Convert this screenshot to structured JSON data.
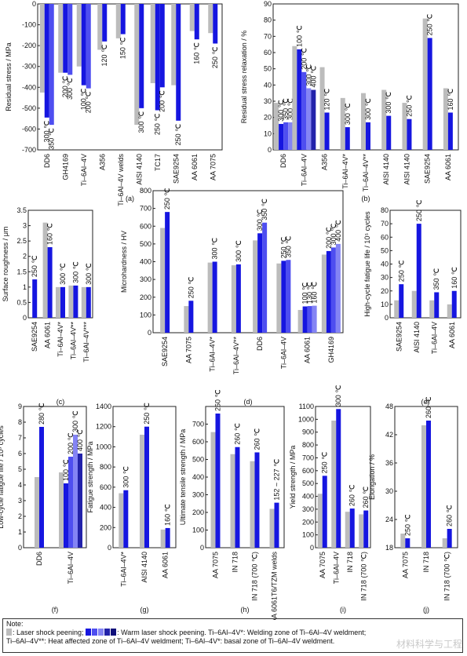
{
  "colors": {
    "lsp": "#bcbcbc",
    "warm": [
      "#1616e0",
      "#4e4ef0",
      "#8484f4",
      "#2222aa",
      "#10107a"
    ],
    "axis": "#222222"
  },
  "chart_data": [
    {
      "id": "a",
      "type": "bar",
      "panel_label": "(a)",
      "ylabel": "Residual stress / MPa",
      "ylim": [
        -700,
        0
      ],
      "yticks": [
        0,
        -100,
        -200,
        -300,
        -400,
        -500,
        -600,
        -700
      ],
      "categories": [
        "DD6",
        "GH4169",
        "Ti–6Al–4V",
        "A356",
        "Ti–6Al–4V welds",
        "AISI 4140",
        "TC17",
        "SAE9254",
        "AA 6061",
        "AA 7075"
      ],
      "groups": [
        {
          "cat": 0,
          "lsp": -425,
          "warm": [
            {
              "v": -545,
              "t": "300 ℃"
            },
            {
              "v": -580,
              "t": "350 ℃"
            }
          ]
        },
        {
          "cat": 1,
          "lsp": -330,
          "warm": [
            {
              "v": -330,
              "t": "200 ℃"
            },
            {
              "v": -340,
              "t": "300 ℃"
            }
          ]
        },
        {
          "cat": 2,
          "lsp": -300,
          "warm": [
            {
              "v": -390,
              "t": "100 ℃"
            },
            {
              "v": -405,
              "t": "200 ℃"
            }
          ]
        },
        {
          "cat": 3,
          "lsp": -220,
          "warm": [
            {
              "v": -180,
              "t": "120 ℃"
            }
          ]
        },
        {
          "cat": 4,
          "lsp": -165,
          "warm": [
            {
              "v": -145,
              "t": "150 ℃"
            }
          ]
        },
        {
          "cat": 5,
          "lsp": -580,
          "warm": [
            {
              "v": -500,
              "t": "300 ℃"
            }
          ]
        },
        {
          "cat": 6,
          "lsp": -380,
          "warm": [
            {
              "v": -510,
              "t": "250 ℃"
            }
          ]
        },
        {
          "cat": 6,
          "lsp": null,
          "warm": [
            {
              "v": -400,
              "t": "200 ℃"
            }
          ]
        },
        {
          "cat": 7,
          "lsp": -390,
          "warm": [
            {
              "v": -560,
              "t": "250 ℃"
            }
          ]
        },
        {
          "cat": 8,
          "lsp": -130,
          "warm": [
            {
              "v": -170,
              "t": "160 ℃"
            }
          ]
        },
        {
          "cat": 9,
          "lsp": -140,
          "warm": [
            {
              "v": -190,
              "t": "250 ℃"
            }
          ]
        }
      ]
    },
    {
      "id": "b",
      "type": "bar",
      "panel_label": "(b)",
      "ylabel": "Residual stress relaxation / %",
      "ylim": [
        0,
        90
      ],
      "yticks": [
        0,
        10,
        20,
        30,
        40,
        50,
        60,
        70,
        80,
        90
      ],
      "categories": [
        "DD6",
        "Ti–6Al–4V",
        "A356",
        "Ti–6Al–4V*",
        "Ti–6Al–4V**",
        "AISI 4140",
        "AISI 4140",
        "SAE9254",
        "AA 6061"
      ],
      "groups": [
        {
          "cat": 0,
          "lsp": 29,
          "warm": [
            {
              "v": 16,
              "t": "300 ℃"
            },
            {
              "v": 17,
              "t": "350 ℃"
            },
            {
              "v": 17,
              "t": "300 ℃"
            }
          ]
        },
        {
          "cat": 1,
          "lsp": 64,
          "warm": [
            {
              "v": 62,
              "t": "100 ℃"
            },
            {
              "v": 48,
              "t": "200 ℃"
            },
            {
              "v": 38,
              "t": "300 ℃"
            },
            {
              "v": 37,
              "t": "400 ℃"
            }
          ]
        },
        {
          "cat": 2,
          "lsp": 51,
          "warm": [
            {
              "v": 23,
              "t": "120 ℃"
            }
          ]
        },
        {
          "cat": 3,
          "lsp": 32,
          "warm": [
            {
              "v": 14,
              "t": "300 ℃"
            }
          ]
        },
        {
          "cat": 4,
          "lsp": 35,
          "warm": [
            {
              "v": 17,
              "t": "300 ℃"
            }
          ]
        },
        {
          "cat": 5,
          "lsp": 37,
          "warm": [
            {
              "v": 21,
              "t": "300 ℃"
            }
          ]
        },
        {
          "cat": 6,
          "lsp": 29,
          "warm": [
            {
              "v": 19,
              "t": "250 ℃"
            }
          ]
        },
        {
          "cat": 7,
          "lsp": 81,
          "warm": [
            {
              "v": 69,
              "t": "250 ℃"
            }
          ]
        },
        {
          "cat": 8,
          "lsp": 38,
          "warm": [
            {
              "v": 23,
              "t": "160 ℃"
            }
          ]
        }
      ]
    },
    {
      "id": "c",
      "type": "bar",
      "panel_label": "(c)",
      "ylabel": "Surface roughness / μm",
      "ylim": [
        0,
        3.5
      ],
      "yticks": [
        0,
        0.5,
        1.0,
        1.5,
        2.0,
        2.5,
        3.0,
        3.5
      ],
      "categories": [
        "SAE9254",
        "AA 6061",
        "Ti–6Al–4V*",
        "Ti–6Al–4V**",
        "Ti–6Al–4V***"
      ],
      "groups": [
        {
          "cat": 0,
          "lsp": null,
          "warm": [
            {
              "v": 1.25,
              "t": "250 ℃"
            }
          ]
        },
        {
          "cat": 1,
          "lsp": 3.1,
          "warm": [
            {
              "v": 2.3,
              "t": "160 ℃"
            }
          ]
        },
        {
          "cat": 2,
          "lsp": 1.0,
          "warm": [
            {
              "v": 1.0,
              "t": "300 ℃"
            }
          ]
        },
        {
          "cat": 3,
          "lsp": 1.05,
          "warm": [
            {
              "v": 1.05,
              "t": "300 ℃"
            }
          ]
        },
        {
          "cat": 4,
          "lsp": 1.0,
          "warm": [
            {
              "v": 1.0,
              "t": "300 ℃"
            }
          ]
        }
      ]
    },
    {
      "id": "d",
      "type": "bar",
      "panel_label": "(d)",
      "ylabel": "Microhardness / HV",
      "ylim": [
        0,
        800
      ],
      "yticks": [
        0,
        100,
        200,
        300,
        400,
        500,
        600,
        700,
        800
      ],
      "categories": [
        "SAE9254",
        "AA 7075",
        "Ti–6Al–4V*",
        "Ti–6Al–4V**",
        "DD6",
        "Ti–6Al–4V",
        "AA 6061",
        "GH4169"
      ],
      "groups": [
        {
          "cat": 0,
          "lsp": 590,
          "warm": [
            {
              "v": 680,
              "t": "250 ℃"
            }
          ]
        },
        {
          "cat": 1,
          "lsp": 150,
          "warm": [
            {
              "v": 180,
              "t": "250 ℃"
            }
          ]
        },
        {
          "cat": 2,
          "lsp": 395,
          "warm": [
            {
              "v": 400,
              "t": "300 ℃"
            }
          ]
        },
        {
          "cat": 3,
          "lsp": 380,
          "warm": [
            {
              "v": 385,
              "t": "300 ℃"
            }
          ]
        },
        {
          "cat": 4,
          "lsp": 520,
          "warm": [
            {
              "v": 560,
              "t": "300 ℃"
            },
            {
              "v": 620,
              "t": "350 ℃"
            }
          ]
        },
        {
          "cat": 5,
          "lsp": 390,
          "warm": [
            {
              "v": 405,
              "t": "250 ℃"
            },
            {
              "v": 410,
              "t": "350 ℃"
            }
          ]
        },
        {
          "cat": 6,
          "lsp": 128,
          "warm": [
            {
              "v": 148,
              "t": "100 ℃"
            },
            {
              "v": 150,
              "t": "130 ℃"
            },
            {
              "v": 152,
              "t": "160 ℃"
            }
          ]
        },
        {
          "cat": 7,
          "lsp": 440,
          "warm": [
            {
              "v": 460,
              "t": "200 ℃"
            },
            {
              "v": 480,
              "t": "300 ℃"
            },
            {
              "v": 500,
              "t": "400 ℃"
            }
          ]
        }
      ]
    },
    {
      "id": "e",
      "type": "bar",
      "panel_label": "(e)",
      "ylabel": "High-cycle fatigue life / 10⁵ cycles",
      "ylim": [
        0,
        80
      ],
      "yticks": [
        0,
        10,
        20,
        30,
        40,
        50,
        60,
        70,
        80
      ],
      "categories": [
        "SAE9254",
        "AISI 4140",
        "Ti–6Al–4V",
        "AA 6061"
      ],
      "groups": [
        {
          "cat": 0,
          "lsp": 13,
          "warm": [
            {
              "v": 25,
              "t": "250 ℃"
            }
          ]
        },
        {
          "cat": 1,
          "lsp": 20,
          "warm": [
            {
              "v": 70,
              "t": "250 ℃"
            }
          ]
        },
        {
          "cat": 2,
          "lsp": 13,
          "warm": [
            {
              "v": 19,
              "t": "350 ℃"
            }
          ]
        },
        {
          "cat": 3,
          "lsp": 10,
          "warm": [
            {
              "v": 20,
              "t": "160 ℃"
            }
          ]
        }
      ]
    },
    {
      "id": "f",
      "type": "bar",
      "panel_label": "(f)",
      "ylabel": "Low-cycle fatigue life / 10³ cycles",
      "ylim": [
        0,
        9
      ],
      "yticks": [
        0,
        1,
        2,
        3,
        4,
        5,
        6,
        7,
        8,
        9
      ],
      "categories": [
        "DD6",
        "Ti–6Al–4V"
      ],
      "groups": [
        {
          "cat": 0,
          "lsp": 4.5,
          "warm": [
            {
              "v": 7.7,
              "t": "280 ℃"
            }
          ]
        },
        {
          "cat": 1,
          "lsp": 4.8,
          "warm": [
            {
              "v": 4.1,
              "t": "100 ℃"
            },
            {
              "v": 5.8,
              "t": "200 ℃"
            },
            {
              "v": 7.2,
              "t": "300 ℃"
            },
            {
              "v": 6.0,
              "t": "400 ℃"
            }
          ]
        }
      ]
    },
    {
      "id": "g",
      "type": "bar",
      "panel_label": "(g)",
      "ylabel": "Fatigue strength / MPa",
      "ylim": [
        0,
        1400
      ],
      "yticks": [
        0,
        200,
        400,
        600,
        800,
        1000,
        1200,
        1400
      ],
      "categories": [
        "Ti–6Al–4V*",
        "AISI 4140",
        "AA 6061"
      ],
      "groups": [
        {
          "cat": 0,
          "lsp": 540,
          "warm": [
            {
              "v": 570,
              "t": "300 ℃"
            }
          ]
        },
        {
          "cat": 1,
          "lsp": 1120,
          "warm": [
            {
              "v": 1200,
              "t": "250 ℃"
            }
          ]
        },
        {
          "cat": 2,
          "lsp": 180,
          "warm": [
            {
              "v": 195,
              "t": "160 ℃"
            }
          ]
        }
      ]
    },
    {
      "id": "h",
      "type": "bar",
      "panel_label": "(h)",
      "ylabel": "Ultimate tensile strength / MPa",
      "ylim": [
        0,
        800
      ],
      "yticks": [
        0,
        100,
        200,
        300,
        400,
        500,
        600,
        700
      ],
      "categories": [
        "AA 7075",
        "IN 718",
        "IN 718 (700 ℃)",
        "AA 6061T6/TZM welds"
      ],
      "groups": [
        {
          "cat": 0,
          "lsp": 655,
          "warm": [
            {
              "v": 760,
              "t": "250 ℃"
            }
          ]
        },
        {
          "cat": 1,
          "lsp": 530,
          "warm": [
            {
              "v": 570,
              "t": "260 ℃"
            }
          ]
        },
        {
          "cat": 2,
          "lsp": 490,
          "warm": [
            {
              "v": 540,
              "t": "260 ℃"
            }
          ]
        },
        {
          "cat": 3,
          "lsp": 220,
          "warm": [
            {
              "v": 255,
              "t": "152 ~ 227 ℃"
            }
          ]
        }
      ]
    },
    {
      "id": "i",
      "type": "bar",
      "panel_label": "(i)",
      "ylabel": "Yield strength / MPa",
      "ylim": [
        0,
        1100
      ],
      "yticks": [
        0,
        100,
        200,
        300,
        400,
        500,
        600,
        700,
        800,
        900,
        1000,
        1100
      ],
      "categories": [
        "AA 7075",
        "Ti–6Al–4V",
        "IN 718",
        "IN 718 (700 ℃)"
      ],
      "groups": [
        {
          "cat": 0,
          "lsp": 420,
          "warm": [
            {
              "v": 560,
              "t": "250 ℃"
            }
          ]
        },
        {
          "cat": 1,
          "lsp": 990,
          "warm": [
            {
              "v": 1080,
              "t": "300 ℃"
            }
          ]
        },
        {
          "cat": 2,
          "lsp": 280,
          "warm": [
            {
              "v": 305,
              "t": "260 ℃"
            }
          ]
        },
        {
          "cat": 3,
          "lsp": 260,
          "warm": [
            {
              "v": 290,
              "t": "260 ℃"
            }
          ]
        }
      ]
    },
    {
      "id": "j",
      "type": "bar",
      "panel_label": "(j)",
      "ylabel": "Elongation / %",
      "ylim": [
        18,
        48
      ],
      "yticks": [
        18,
        24,
        30,
        36,
        42,
        48
      ],
      "categories": [
        "AA 7075",
        "IN 718",
        "IN 718 (700 ℃)"
      ],
      "groups": [
        {
          "cat": 0,
          "lsp": 21,
          "warm": [
            {
              "v": 20,
              "t": "250 ℃"
            }
          ]
        },
        {
          "cat": 1,
          "lsp": 44,
          "warm": [
            {
              "v": 45,
              "t": "260 ℃"
            }
          ]
        },
        {
          "cat": 2,
          "lsp": 20,
          "warm": [
            {
              "v": 22,
              "t": "260 ℃"
            }
          ]
        }
      ]
    }
  ],
  "note": {
    "title": "Note:",
    "lsp_label": ": Laser shock peening;",
    "warm_label": ": Warm laser shock peening. Ti–6Al–4V*: Welding zone of Ti–6Al–4V weldment;",
    "line2": "Ti–6Al–4V**: Heat affected zone of Ti–6Al–4V weldment; Ti–6Al–4V*: basal zone of Ti–6Al–4V weldment."
  },
  "watermark": "材料科学与工程"
}
